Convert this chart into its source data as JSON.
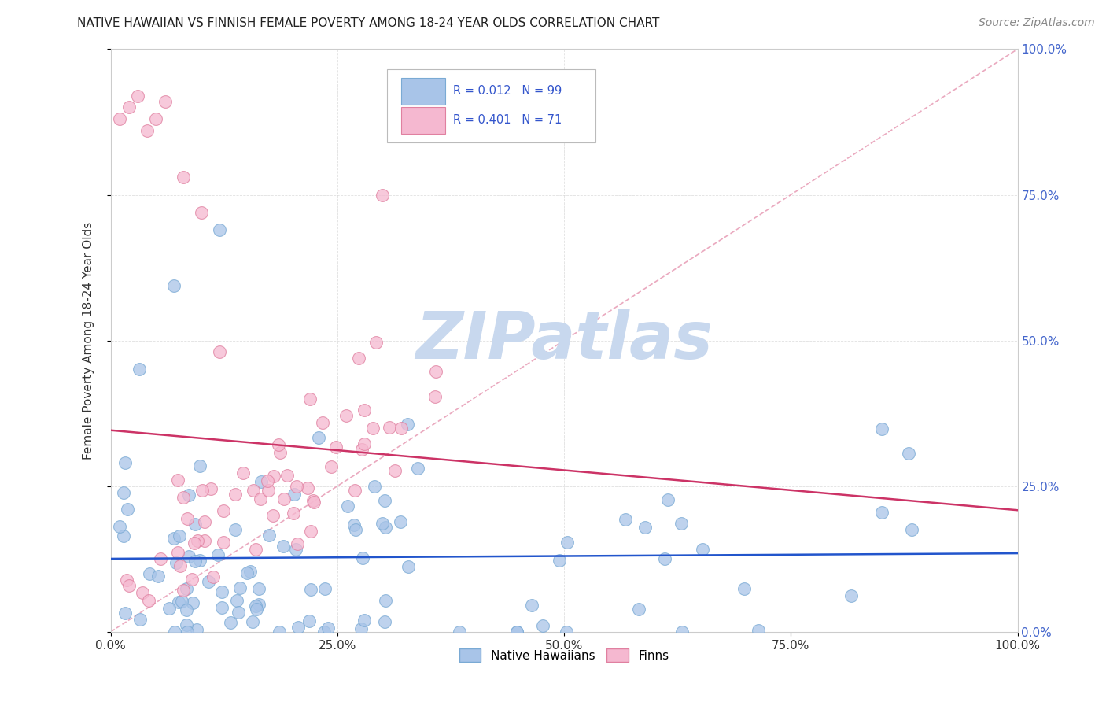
{
  "title": "NATIVE HAWAIIAN VS FINNISH FEMALE POVERTY AMONG 18-24 YEAR OLDS CORRELATION CHART",
  "source": "Source: ZipAtlas.com",
  "ylabel": "Female Poverty Among 18-24 Year Olds",
  "xlim": [
    0.0,
    1.0
  ],
  "ylim": [
    0.0,
    1.0
  ],
  "xticks": [
    0.0,
    0.25,
    0.5,
    0.75,
    1.0
  ],
  "yticks": [
    0.0,
    0.25,
    0.5,
    0.75,
    1.0
  ],
  "xticklabels": [
    "0.0%",
    "25.0%",
    "50.0%",
    "75.0%",
    "100.0%"
  ],
  "yticklabels": [
    "0.0%",
    "25.0%",
    "50.0%",
    "75.0%",
    "100.0%"
  ],
  "native_hawaiian_color": "#a8c4e8",
  "native_hawaiian_edge": "#7aaad4",
  "finn_color": "#f5b8d0",
  "finn_edge": "#e080a0",
  "regression_blue": "#2255cc",
  "regression_pink": "#cc3366",
  "diagonal_color": "#e8a0b8",
  "watermark_color": "#c8d8ee",
  "legend_label1": "Native Hawaiians",
  "legend_label2": "Finns",
  "background_color": "#ffffff",
  "tick_color_y": "#4466cc",
  "tick_color_x": "#333333",
  "ylabel_color": "#333333"
}
